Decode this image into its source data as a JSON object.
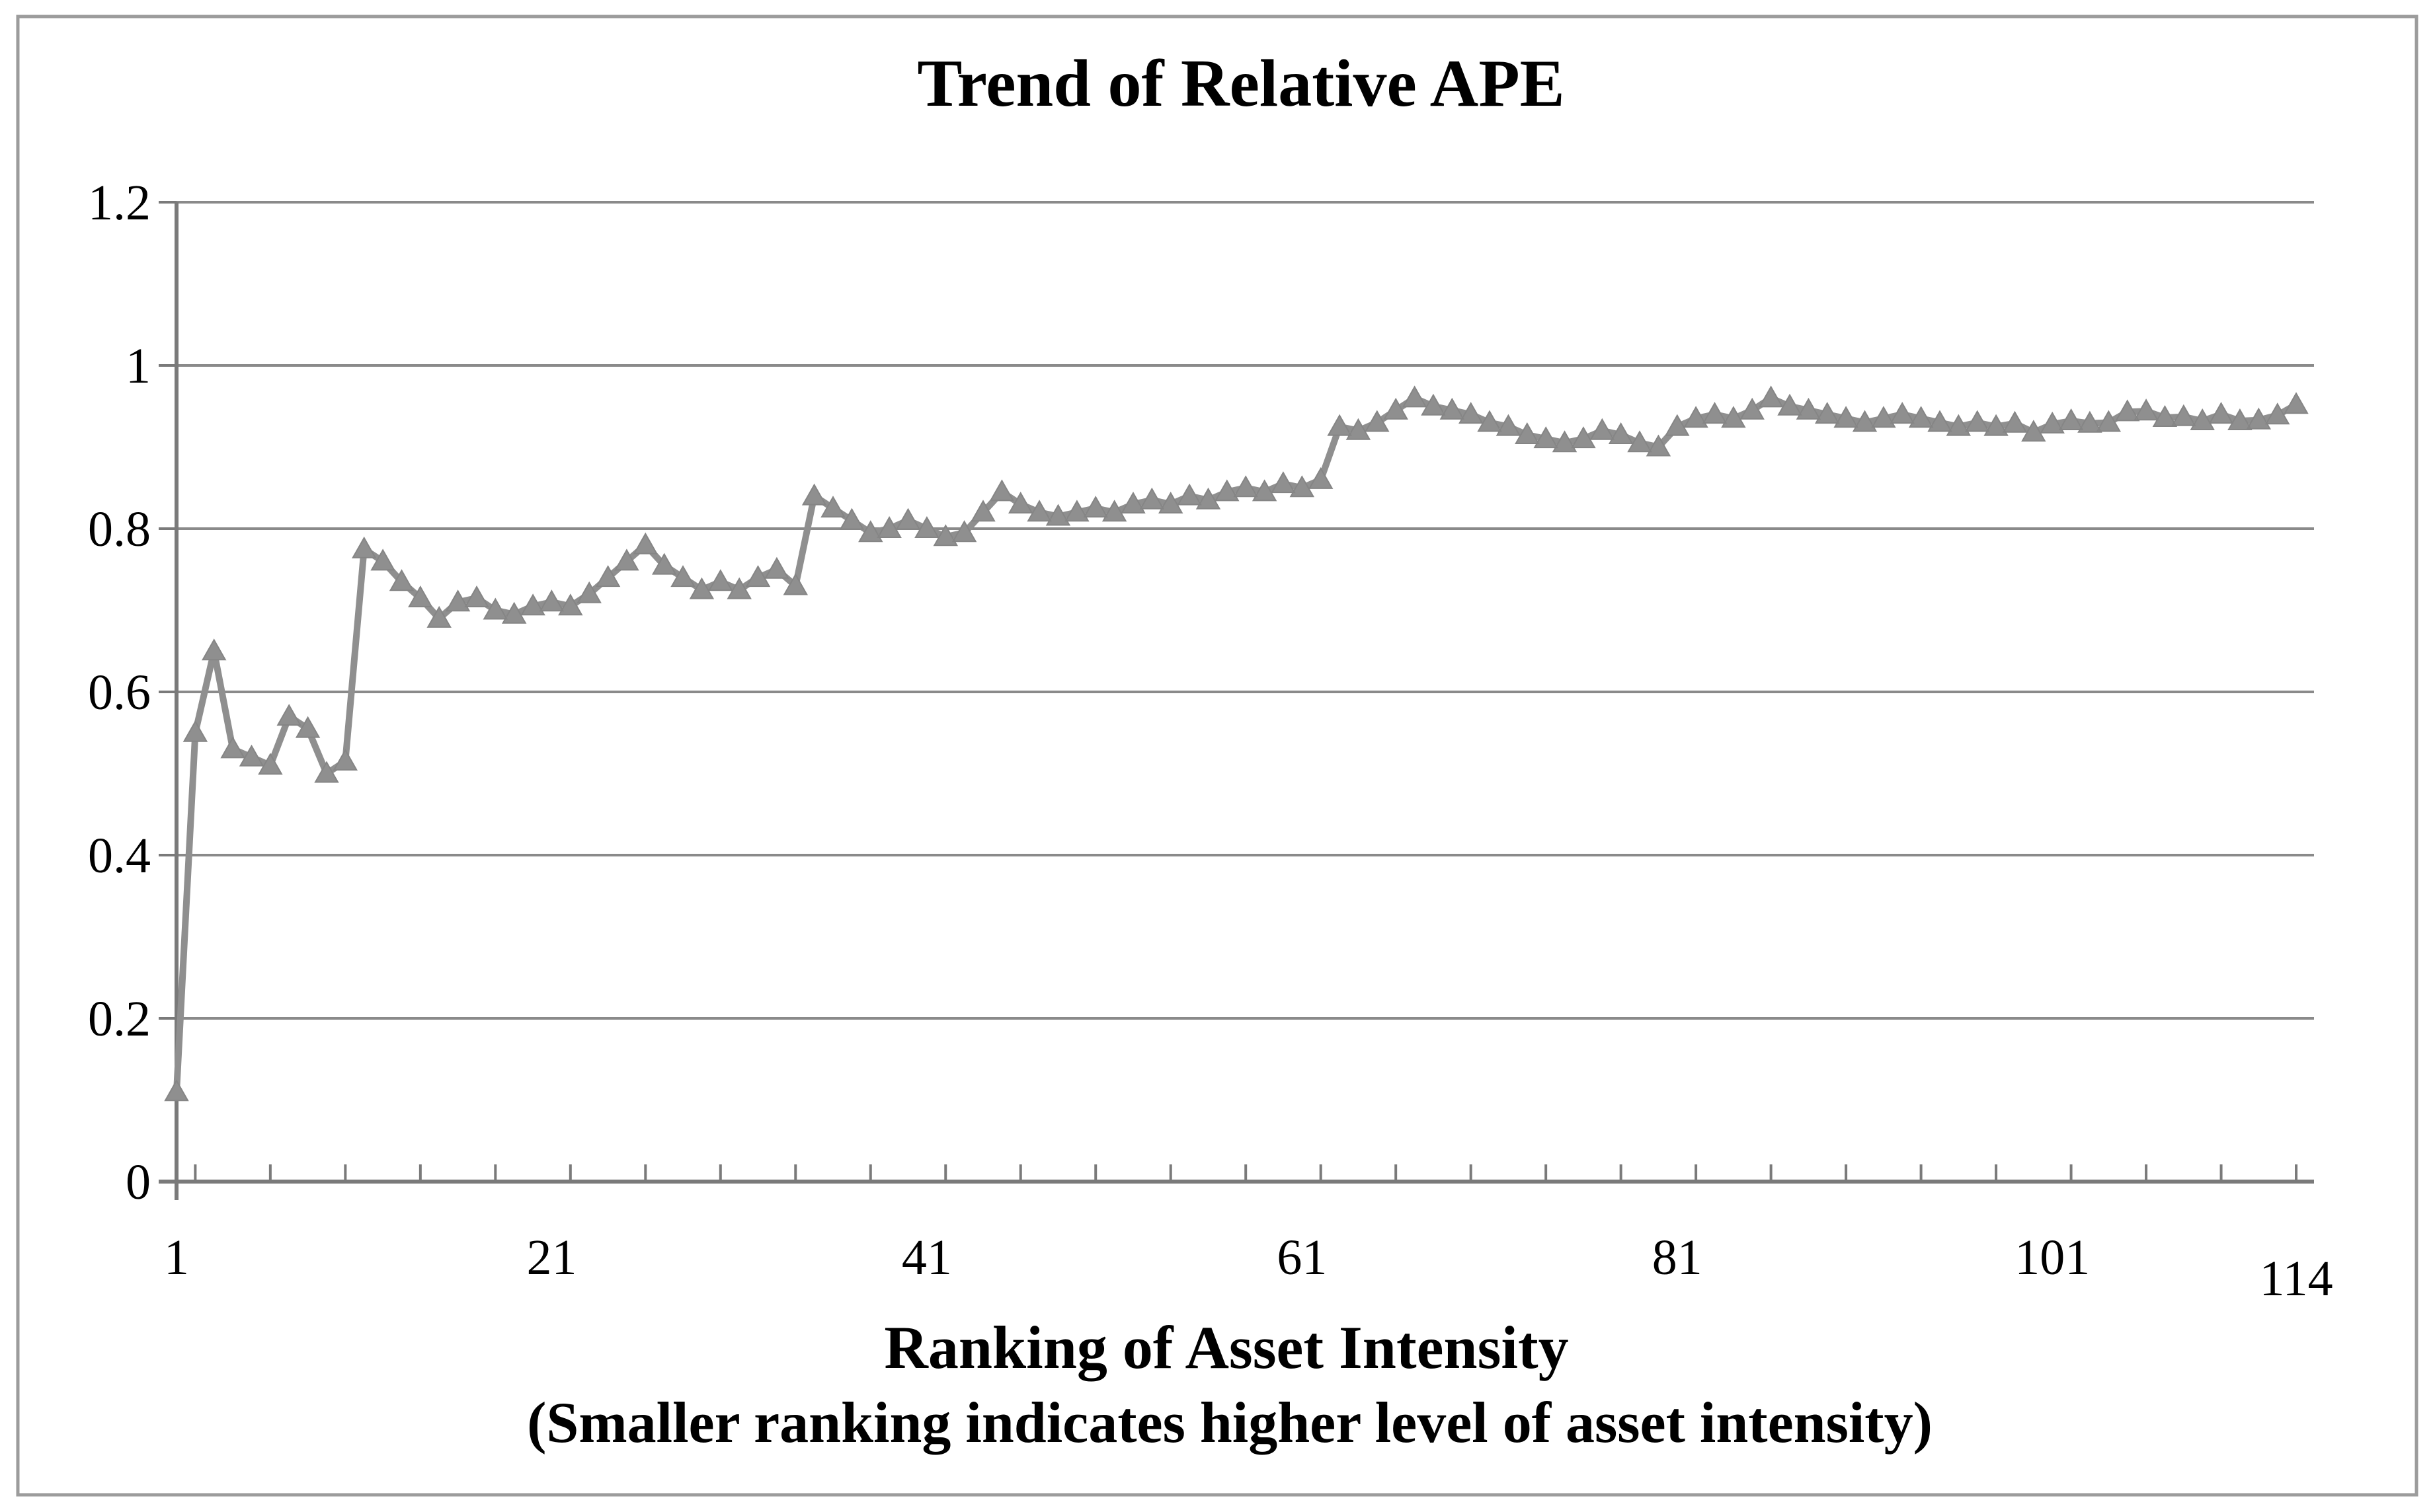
{
  "chart_data": {
    "type": "line",
    "title": "Trend of Relative APE",
    "xlabel": "Ranking of Asset Intensity",
    "xlabel_note": "(Smaller ranking indicates higher level of asset intensity)",
    "ylabel": "",
    "legend_position": "none",
    "grid": "horizontal",
    "xlim": [
      1,
      114
    ],
    "ylim": [
      0,
      1.2
    ],
    "y_ticks": [
      0,
      0.2,
      0.4,
      0.6,
      0.8,
      1,
      1.2
    ],
    "y_tick_labels": [
      "0",
      "0.2",
      "0.4",
      "0.6",
      "0.8",
      "1",
      "1.2"
    ],
    "x_tick_positions": [
      1,
      21,
      41,
      61,
      81,
      101,
      114
    ],
    "x_tick_labels": [
      "1",
      "21",
      "41",
      "61",
      "81",
      "101",
      "114"
    ],
    "minor_x_tick_every": 4,
    "colors": {
      "series": "#8f8f8f",
      "series_edge": "#858585",
      "gridline": "#8a8a8a",
      "axis": "#7a7a7a",
      "text": "#000000",
      "border": "#9c9c9c",
      "background": "#ffffff"
    },
    "series": [
      {
        "name": "Relative APE",
        "marker": "triangle",
        "x_start": 1,
        "x_step": 1,
        "values": [
          0.11,
          0.55,
          0.65,
          0.53,
          0.52,
          0.51,
          0.57,
          0.555,
          0.5,
          0.515,
          0.775,
          0.76,
          0.735,
          0.715,
          0.69,
          0.71,
          0.715,
          0.7,
          0.695,
          0.705,
          0.71,
          0.705,
          0.72,
          0.74,
          0.76,
          0.78,
          0.755,
          0.74,
          0.725,
          0.735,
          0.725,
          0.74,
          0.75,
          0.73,
          0.84,
          0.825,
          0.81,
          0.795,
          0.8,
          0.81,
          0.8,
          0.79,
          0.795,
          0.82,
          0.845,
          0.83,
          0.82,
          0.815,
          0.82,
          0.825,
          0.82,
          0.83,
          0.835,
          0.83,
          0.84,
          0.835,
          0.845,
          0.85,
          0.845,
          0.855,
          0.85,
          0.86,
          0.925,
          0.92,
          0.93,
          0.945,
          0.96,
          0.95,
          0.945,
          0.94,
          0.93,
          0.925,
          0.915,
          0.91,
          0.905,
          0.91,
          0.92,
          0.915,
          0.905,
          0.9,
          0.925,
          0.935,
          0.94,
          0.935,
          0.945,
          0.96,
          0.95,
          0.945,
          0.94,
          0.935,
          0.93,
          0.935,
          0.94,
          0.935,
          0.93,
          0.925,
          0.93,
          0.925,
          0.929,
          0.918,
          0.928,
          0.932,
          0.929,
          0.93,
          0.943,
          0.944,
          0.936,
          0.937,
          0.932,
          0.94,
          0.932,
          0.933,
          0.939,
          0.952
        ]
      }
    ]
  }
}
